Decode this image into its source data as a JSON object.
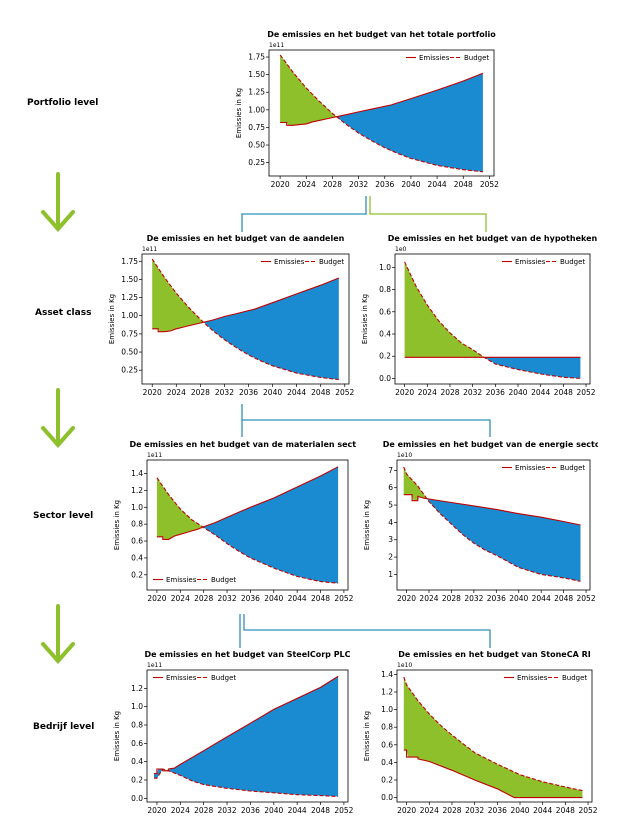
{
  "colors": {
    "emissions_line": "#c00000",
    "green_fill": "#8ec02b",
    "blue_fill": "#1a8bd0",
    "arrow": "#8ec02b",
    "connector_blue": "#2f8fb8",
    "connector_green": "#8ec02b"
  },
  "levels": [
    {
      "label": "Portfolio level"
    },
    {
      "label": "Asset class"
    },
    {
      "label": "Sector level"
    },
    {
      "label": "Bedrijf level"
    }
  ],
  "chart_data": [
    {
      "id": "portfolio",
      "type": "area",
      "title": "De emissies en het budget van het totale portfolio",
      "ylabel": "Emissies in Kg",
      "multiplier": "1e11",
      "legend": [
        "Emissies",
        "Budget"
      ],
      "legend_position": "top-right",
      "x_ticks": [
        "2020",
        "2024",
        "2028",
        "2032",
        "2036",
        "2040",
        "2044",
        "2048",
        "2052"
      ],
      "y_ticks": [
        "0.25",
        "0.50",
        "0.75",
        "1.00",
        "1.25",
        "1.50",
        "1.75"
      ],
      "xlim": [
        2018.3,
        2052.7
      ],
      "ylim": [
        0.06,
        1.85
      ],
      "emissions": {
        "x": [
          2020,
          2020,
          2021,
          2021,
          2022,
          2023,
          2024,
          2025,
          2026,
          2027,
          2028,
          2030,
          2032,
          2034,
          2036,
          2037,
          2040,
          2044,
          2048,
          2051
        ],
        "y": [
          0.82,
          0.82,
          0.82,
          0.78,
          0.78,
          0.79,
          0.8,
          0.83,
          0.85,
          0.87,
          0.89,
          0.93,
          0.97,
          1.01,
          1.05,
          1.07,
          1.16,
          1.28,
          1.41,
          1.52
        ]
      },
      "budget": {
        "x": [
          2020,
          2022,
          2024,
          2026,
          2028,
          2030,
          2032,
          2034,
          2036,
          2038,
          2040,
          2044,
          2048,
          2051
        ],
        "y": [
          1.78,
          1.53,
          1.31,
          1.12,
          0.95,
          0.8,
          0.67,
          0.56,
          0.46,
          0.38,
          0.31,
          0.21,
          0.15,
          0.12
        ]
      }
    },
    {
      "id": "aandelen",
      "type": "area",
      "title": "De emissies en het budget van de aandelen",
      "ylabel": "Emissies in Kg",
      "multiplier": "1e11",
      "legend": [
        "Emissies",
        "Budget"
      ],
      "legend_position": "top-right",
      "x_ticks": [
        "2020",
        "2024",
        "2028",
        "2032",
        "2036",
        "2040",
        "2044",
        "2048",
        "2052"
      ],
      "y_ticks": [
        "0.25",
        "0.50",
        "0.75",
        "1.00",
        "1.25",
        "1.50",
        "1.75"
      ],
      "xlim": [
        2018.3,
        2052.7
      ],
      "ylim": [
        0.06,
        1.85
      ],
      "emissions": {
        "x": [
          2020,
          2020,
          2021,
          2021,
          2022,
          2023,
          2024,
          2025,
          2026,
          2027,
          2028,
          2030,
          2032,
          2034,
          2036,
          2037,
          2040,
          2044,
          2048,
          2051
        ],
        "y": [
          0.82,
          0.82,
          0.82,
          0.78,
          0.78,
          0.79,
          0.82,
          0.84,
          0.86,
          0.88,
          0.9,
          0.94,
          0.99,
          1.03,
          1.07,
          1.09,
          1.18,
          1.3,
          1.42,
          1.52
        ]
      },
      "budget": {
        "x": [
          2020,
          2022,
          2024,
          2026,
          2028,
          2030,
          2032,
          2034,
          2036,
          2038,
          2040,
          2044,
          2048,
          2051
        ],
        "y": [
          1.78,
          1.53,
          1.31,
          1.12,
          0.95,
          0.8,
          0.67,
          0.56,
          0.46,
          0.38,
          0.31,
          0.21,
          0.15,
          0.12
        ]
      }
    },
    {
      "id": "hypotheken",
      "type": "area",
      "title": "De emissies en het budget van de hypotheken",
      "ylabel": "Emissies in Kg",
      "multiplier": "1e0",
      "legend": [
        "Emissies",
        "Budget"
      ],
      "legend_position": "top-right",
      "x_ticks": [
        "2020",
        "2024",
        "2028",
        "2032",
        "2036",
        "2040",
        "2044",
        "2048",
        "2052"
      ],
      "y_ticks": [
        "0.0",
        "0.2",
        "0.4",
        "0.6",
        "0.8",
        "1.0"
      ],
      "xlim": [
        2018.3,
        2052.7
      ],
      "ylim": [
        -0.05,
        1.12
      ],
      "emissions": {
        "x": [
          2020,
          2051
        ],
        "y": [
          0.19,
          0.19
        ]
      },
      "budget": {
        "x": [
          2020,
          2022,
          2024,
          2026,
          2028,
          2030,
          2032,
          2034,
          2036,
          2040,
          2044,
          2048,
          2051
        ],
        "y": [
          1.05,
          0.83,
          0.66,
          0.52,
          0.41,
          0.32,
          0.26,
          0.19,
          0.13,
          0.08,
          0.04,
          0.01,
          0.0
        ]
      }
    },
    {
      "id": "materialen",
      "type": "area",
      "title": "De emissies en het budget van de materialen sector",
      "ylabel": "Emissies in Kg",
      "multiplier": "1e11",
      "legend": [
        "Emissies",
        "Budget"
      ],
      "legend_position": "bottom-left",
      "x_ticks": [
        "2020",
        "2024",
        "2028",
        "2032",
        "2036",
        "2040",
        "2044",
        "2048",
        "2052"
      ],
      "y_ticks": [
        "0.2",
        "0.4",
        "0.6",
        "0.8",
        "1.0",
        "1.2",
        "1.4"
      ],
      "xlim": [
        2018.3,
        2052.7
      ],
      "ylim": [
        0.02,
        1.56
      ],
      "emissions": {
        "x": [
          2020,
          2020,
          2021,
          2021,
          2022,
          2023,
          2024,
          2025,
          2026,
          2027,
          2028,
          2030,
          2032,
          2034,
          2036,
          2040,
          2044,
          2048,
          2051
        ],
        "y": [
          0.65,
          0.65,
          0.65,
          0.62,
          0.62,
          0.66,
          0.68,
          0.7,
          0.72,
          0.74,
          0.77,
          0.82,
          0.88,
          0.94,
          1.0,
          1.11,
          1.24,
          1.37,
          1.48
        ]
      },
      "budget": {
        "x": [
          2020,
          2022,
          2024,
          2026,
          2028,
          2030,
          2032,
          2034,
          2036,
          2040,
          2044,
          2048,
          2051
        ],
        "y": [
          1.35,
          1.15,
          0.98,
          0.85,
          0.76,
          0.67,
          0.57,
          0.48,
          0.4,
          0.28,
          0.18,
          0.12,
          0.1
        ]
      }
    },
    {
      "id": "energie",
      "type": "area",
      "title": "De emissies en het budget van de energie sector",
      "ylabel": "Emissies in Kg",
      "multiplier": "1e10",
      "legend": [
        "Emissies",
        "Budget"
      ],
      "legend_position": "top-right",
      "x_ticks": [
        "2020",
        "2024",
        "2028",
        "2032",
        "2036",
        "2040",
        "2044",
        "2048",
        "2052"
      ],
      "y_ticks": [
        "1",
        "2",
        "3",
        "4",
        "5",
        "6",
        "7"
      ],
      "xlim": [
        2018.3,
        2052.7
      ],
      "ylim": [
        0.1,
        7.6
      ],
      "emissions": {
        "x": [
          2019.5,
          2021,
          2021,
          2022,
          2022,
          2023,
          2024,
          2028,
          2032,
          2036,
          2040,
          2044,
          2048,
          2051
        ],
        "y": [
          5.6,
          5.6,
          5.25,
          5.25,
          5.5,
          5.4,
          5.35,
          5.15,
          4.95,
          4.75,
          4.5,
          4.3,
          4.05,
          3.85
        ]
      },
      "budget": {
        "x": [
          2019.5,
          2020,
          2022,
          2024,
          2026,
          2028,
          2030,
          2032,
          2034,
          2036,
          2040,
          2044,
          2048,
          2051
        ],
        "y": [
          7.2,
          6.8,
          6.1,
          5.2,
          4.5,
          3.9,
          3.3,
          2.8,
          2.4,
          2.1,
          1.4,
          1.0,
          0.8,
          0.6
        ]
      }
    },
    {
      "id": "steelcorp",
      "type": "area",
      "title": "De emissies en het budget van SteelCorp PLC",
      "ylabel": "Emissies in Kg",
      "multiplier": "1e11",
      "legend": [
        "Emissies",
        "Budget"
      ],
      "legend_position": "top-left",
      "x_ticks": [
        "2020",
        "2024",
        "2028",
        "2032",
        "2036",
        "2040",
        "2044",
        "2048",
        "2052"
      ],
      "y_ticks": [
        "0.0",
        "0.2",
        "0.4",
        "0.6",
        "0.8",
        "1.0",
        "1.2"
      ],
      "xlim": [
        2018.3,
        2052.7
      ],
      "ylim": [
        -0.04,
        1.4
      ],
      "emissions": {
        "x": [
          2019.5,
          2020,
          2020,
          2021,
          2021,
          2022,
          2022,
          2023,
          2024,
          2028,
          2032,
          2036,
          2040,
          2044,
          2048,
          2051
        ],
        "y": [
          0.27,
          0.27,
          0.32,
          0.32,
          0.3,
          0.3,
          0.32,
          0.33,
          0.37,
          0.52,
          0.67,
          0.82,
          0.97,
          1.09,
          1.21,
          1.33
        ]
      },
      "budget": {
        "x": [
          2019.5,
          2020,
          2021,
          2022,
          2024,
          2026,
          2028,
          2032,
          2036,
          2040,
          2044,
          2048,
          2051
        ],
        "y": [
          0.22,
          0.22,
          0.32,
          0.3,
          0.25,
          0.19,
          0.15,
          0.11,
          0.08,
          0.06,
          0.04,
          0.03,
          0.02
        ]
      }
    },
    {
      "id": "stoneca",
      "type": "area",
      "title": "De emissies en het budget van StoneCA RI",
      "ylabel": "Emissies in Kg",
      "multiplier": "1e10",
      "legend": [
        "Emissies",
        "Budget"
      ],
      "legend_position": "top-right",
      "x_ticks": [
        "2020",
        "2024",
        "2028",
        "2032",
        "2036",
        "2040",
        "2044",
        "2048",
        "2052"
      ],
      "y_ticks": [
        "0.0",
        "0.2",
        "0.4",
        "0.6",
        "0.8",
        "1.0",
        "1.2",
        "1.4"
      ],
      "xlim": [
        2018.3,
        2052.7
      ],
      "ylim": [
        -0.05,
        1.45
      ],
      "emissions": {
        "x": [
          2019.5,
          2020,
          2020,
          2022,
          2022,
          2024,
          2028,
          2032,
          2036,
          2039,
          2040,
          2044,
          2048,
          2051
        ],
        "y": [
          0.54,
          0.54,
          0.46,
          0.46,
          0.44,
          0.41,
          0.31,
          0.2,
          0.1,
          0.0,
          0.0,
          0.0,
          0.0,
          0.0
        ]
      },
      "budget": {
        "x": [
          2019.5,
          2020,
          2022,
          2024,
          2026,
          2028,
          2030,
          2032,
          2036,
          2040,
          2044,
          2048,
          2051
        ],
        "y": [
          1.37,
          1.28,
          1.1,
          0.95,
          0.82,
          0.71,
          0.61,
          0.51,
          0.38,
          0.26,
          0.18,
          0.12,
          0.08
        ]
      }
    }
  ]
}
